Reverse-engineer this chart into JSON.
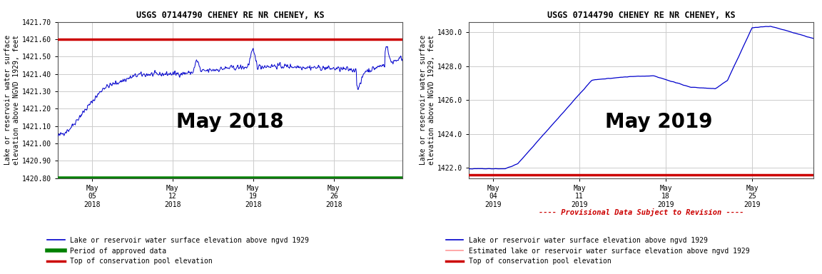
{
  "title1": "USGS 07144790 CHENEY RE NR CHENEY, KS",
  "title2": "USGS 07144790 CHENEY RE NR CHENEY, KS",
  "ylabel": "Lake or reservoir water surface\nelevation above NGVD 1929, feet",
  "watermark1": "May 2018",
  "watermark2": "May 2019",
  "chart1": {
    "ylim": [
      1420.8,
      1421.7
    ],
    "yticks": [
      1420.8,
      1420.9,
      1421.0,
      1421.1,
      1421.2,
      1421.3,
      1421.4,
      1421.5,
      1421.6,
      1421.7
    ],
    "ytick_labels": [
      "1420.80",
      "1420.90",
      "1421.00",
      "1421.10",
      "1421.20",
      "1421.30",
      "1421.40",
      "1421.50",
      "1421.60",
      "1421.70"
    ],
    "red_line_y": 1421.6,
    "green_line_y": 1420.8,
    "xtick_labels": [
      "May\n05\n2018",
      "May\n12\n2018",
      "May\n19\n2018",
      "May\n26\n2018"
    ],
    "xtick_positions": [
      4,
      11,
      18,
      25
    ],
    "xlim": [
      1,
      31
    ]
  },
  "chart2": {
    "ylim": [
      1421.4,
      1430.6
    ],
    "yticks": [
      1422.0,
      1424.0,
      1426.0,
      1428.0,
      1430.0
    ],
    "ytick_labels": [
      "1422.0",
      "1424.0",
      "1426.0",
      "1428.0",
      "1430.0"
    ],
    "red_line_y": 1421.6,
    "xtick_labels": [
      "May\n04\n2019",
      "May\n11\n2019",
      "May\n18\n2019",
      "May\n25\n2019"
    ],
    "xtick_positions": [
      3,
      10,
      17,
      24
    ],
    "xlim": [
      1,
      29
    ]
  },
  "legend1": [
    {
      "label": "Lake or reservoir water surface elevation above ngvd 1929",
      "color": "#0000cc",
      "lw": 1.2
    },
    {
      "label": "Period of approved data",
      "color": "#008000",
      "lw": 4
    },
    {
      "label": "Top of conservation pool elevation",
      "color": "#cc0000",
      "lw": 2.5
    }
  ],
  "legend2": [
    {
      "label": "Lake or reservoir water surface elevation above ngvd 1929",
      "color": "#0000cc",
      "lw": 1.2
    },
    {
      "label": "Estimated lake or reservoir water surface elevation above ngvd 1929",
      "color": "#ff9999",
      "lw": 1.2
    },
    {
      "label": "Top of conservation pool elevation",
      "color": "#cc0000",
      "lw": 2.5
    }
  ],
  "provisional_text": "---- Provisional Data Subject to Revision ----",
  "bg_color": "#ffffff",
  "grid_color": "#cccccc"
}
